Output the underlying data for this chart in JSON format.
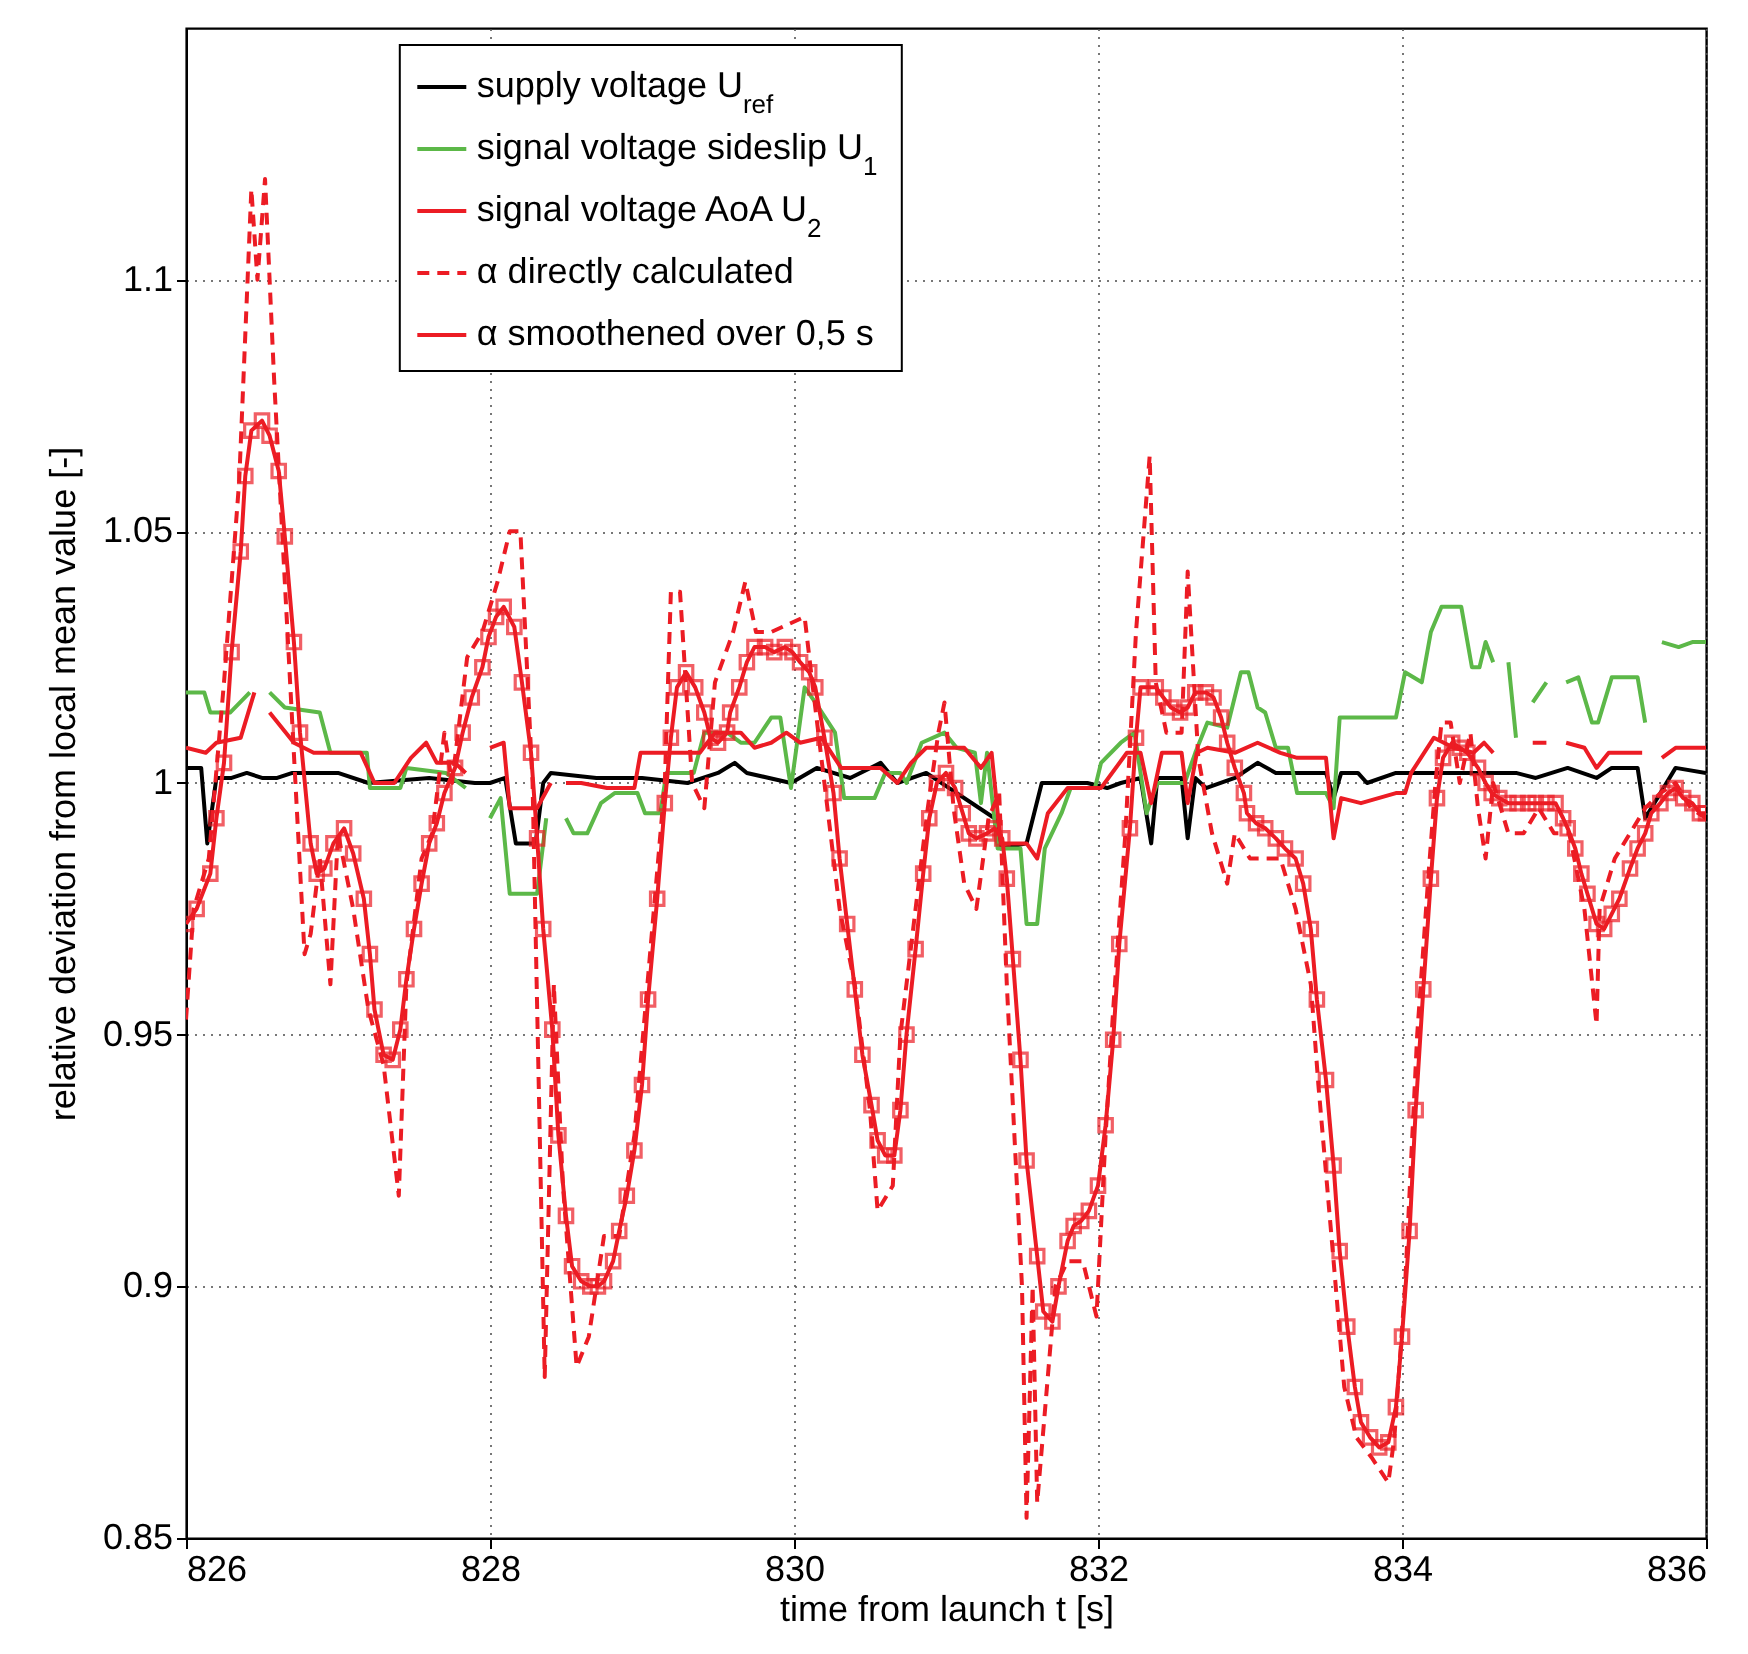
{
  "chart_data": {
    "type": "line",
    "xlabel": "time from launch t [s]",
    "ylabel": "relative deviation from local mean value [-]",
    "xlim": [
      826,
      836
    ],
    "xticks": [
      826,
      828,
      830,
      832,
      834,
      836
    ],
    "ylim": [
      0.85,
      1.15
    ],
    "yticks": [
      0.85,
      0.9,
      0.95,
      1,
      1.05,
      1.1
    ],
    "grid": true,
    "legend": "top",
    "series": [
      {
        "name": "supply voltage U$_{ref}$",
        "color": "#000000",
        "line_style": "solid",
        "marker": "none",
        "x": [
          826.0,
          826.1,
          826.14,
          826.2,
          826.3,
          826.4,
          826.5,
          826.6,
          826.7,
          827.0,
          827.2,
          827.6,
          827.9,
          828.0,
          828.1,
          828.17,
          828.3,
          828.35,
          828.4,
          828.7,
          829.0,
          829.3,
          829.5,
          829.61,
          829.69,
          829.98,
          830.15,
          830.37,
          830.57,
          830.68,
          830.87,
          831.32,
          831.36,
          831.53,
          831.63,
          831.76,
          831.93,
          832.06,
          832.15,
          832.28,
          832.35,
          832.39,
          832.55,
          832.59,
          832.64,
          832.71,
          832.9,
          833.05,
          833.17,
          833.5,
          833.55,
          833.6,
          833.71,
          833.77,
          833.96,
          834.52,
          834.75,
          834.88,
          835.09,
          835.28,
          835.38,
          835.55,
          835.6,
          835.8,
          836.0
        ],
        "values": [
          1.003,
          1.003,
          0.988,
          1.001,
          1.001,
          1.002,
          1.001,
          1.001,
          1.002,
          1.002,
          1.0,
          1.001,
          1.0,
          1.0,
          1.001,
          0.988,
          0.988,
          1.0,
          1.002,
          1.001,
          1.001,
          1.0,
          1.002,
          1.004,
          1.002,
          1.0,
          1.003,
          1.001,
          1.004,
          1.0,
          1.002,
          0.993,
          0.987,
          0.988,
          1.0,
          1.0,
          1.0,
          0.999,
          1.0,
          1.001,
          0.988,
          1.001,
          1.001,
          0.989,
          1.001,
          0.999,
          1.001,
          1.004,
          1.002,
          1.002,
          0.997,
          1.002,
          1.002,
          1.0,
          1.002,
          1.002,
          1.002,
          1.001,
          1.003,
          1.001,
          1.003,
          1.003,
          0.993,
          1.003,
          1.002
        ]
      },
      {
        "name": "signal voltage sideslip U$_{1}$",
        "color": "#5cb848",
        "line_style": "solid",
        "marker": "none",
        "x": [
          826.0,
          826.12,
          826.16,
          826.29,
          826.42,
          826.48,
          826.55,
          826.65,
          826.88,
          826.95,
          827.19,
          827.21,
          827.41,
          827.45,
          827.71,
          827.84,
          827.92,
          828.0,
          828.07,
          828.13,
          828.31,
          828.37,
          828.44,
          828.5,
          828.55,
          828.64,
          828.73,
          828.82,
          828.97,
          829.02,
          829.12,
          829.16,
          829.34,
          829.41,
          829.56,
          829.65,
          829.74,
          829.85,
          829.91,
          829.98,
          830.07,
          830.14,
          830.27,
          830.33,
          830.53,
          830.6,
          830.7,
          830.74,
          830.84,
          830.99,
          831.07,
          831.19,
          831.23,
          831.27,
          831.34,
          831.49,
          831.53,
          831.6,
          831.65,
          831.76,
          831.82,
          831.98,
          832.02,
          832.15,
          832.24,
          832.32,
          832.39,
          832.57,
          832.64,
          832.72,
          832.85,
          832.94,
          832.99,
          833.05,
          833.1,
          833.17,
          833.25,
          833.31,
          833.5,
          833.55,
          833.59,
          833.96,
          834.02,
          834.13,
          834.19,
          834.26,
          834.39,
          834.46,
          834.51,
          834.55,
          834.6,
          834.65,
          834.7,
          834.75,
          834.8,
          834.86,
          834.95,
          835.0,
          835.08,
          835.16,
          835.25,
          835.29,
          835.38,
          835.55,
          835.6,
          835.65,
          835.71,
          835.82,
          835.91,
          836.0
        ],
        "values": [
          1.018,
          1.018,
          1.014,
          1.014,
          1.018,
          null,
          1.018,
          1.015,
          1.014,
          1.006,
          1.006,
          0.999,
          0.999,
          1.003,
          1.002,
          0.999,
          null,
          0.993,
          0.997,
          0.978,
          0.978,
          0.993,
          null,
          0.993,
          0.99,
          0.99,
          0.996,
          0.998,
          0.998,
          0.994,
          0.994,
          1.002,
          1.002,
          1.01,
          1.01,
          1.008,
          1.008,
          1.013,
          1.013,
          0.999,
          1.019,
          1.016,
          1.01,
          0.997,
          0.997,
          1.002,
          1.002,
          1.0,
          1.008,
          1.01,
          1.007,
          1.006,
          0.996,
          1.006,
          0.987,
          0.987,
          0.972,
          0.972,
          0.987,
          0.994,
          0.999,
          0.999,
          1.004,
          1.008,
          1.01,
          0.994,
          1.0,
          1.0,
          1.006,
          1.012,
          1.011,
          1.022,
          1.022,
          1.015,
          1.014,
          1.007,
          1.007,
          0.998,
          0.998,
          0.995,
          1.013,
          1.013,
          1.022,
          1.02,
          1.03,
          1.035,
          1.035,
          1.023,
          1.023,
          1.028,
          1.024,
          null,
          1.024,
          1.009,
          null,
          1.016,
          1.02,
          null,
          1.02,
          1.021,
          1.012,
          1.012,
          1.021,
          1.021,
          1.012,
          null,
          1.028,
          1.027,
          1.028,
          1.028
        ]
      },
      {
        "name": "signal voltage AoA U$_{2}$",
        "color": "#ec1c24",
        "line_style": "solid",
        "marker": "none",
        "x": [
          826.0,
          826.13,
          826.2,
          826.36,
          826.45,
          826.5,
          826.55,
          826.71,
          826.84,
          827.15,
          827.24,
          827.37,
          827.48,
          827.58,
          827.65,
          827.77,
          827.84,
          827.92,
          828.0,
          828.09,
          828.13,
          828.31,
          828.4,
          828.45,
          828.5,
          828.6,
          828.77,
          828.95,
          828.99,
          829.16,
          829.38,
          829.48,
          829.65,
          829.74,
          829.85,
          829.95,
          830.04,
          830.18,
          830.31,
          830.57,
          830.68,
          830.77,
          830.87,
          831.12,
          831.23,
          831.3,
          831.36,
          831.53,
          831.6,
          831.67,
          831.8,
          832.02,
          832.19,
          832.28,
          832.35,
          832.42,
          832.55,
          832.59,
          832.65,
          832.72,
          832.9,
          833.05,
          833.2,
          833.31,
          833.5,
          833.55,
          833.6,
          833.73,
          833.96,
          834.02,
          834.06,
          834.21,
          834.34,
          834.47,
          834.54,
          834.6,
          834.7,
          834.86,
          834.95,
          835.0,
          835.08,
          835.2,
          835.28,
          835.36,
          835.58,
          835.65,
          835.71,
          835.8,
          836.0
        ],
        "values": [
          1.007,
          1.006,
          1.008,
          1.009,
          1.018,
          null,
          1.014,
          1.008,
          1.006,
          1.006,
          1.0,
          1.0,
          1.005,
          1.008,
          1.004,
          1.004,
          1.002,
          null,
          1.007,
          1.008,
          0.995,
          0.995,
          1.0,
          null,
          1.0,
          1.0,
          0.999,
          0.999,
          1.006,
          1.006,
          1.006,
          1.01,
          1.01,
          1.007,
          1.008,
          1.01,
          1.008,
          1.009,
          1.003,
          1.003,
          1.0,
          1.004,
          1.007,
          1.007,
          1.003,
          1.006,
          0.988,
          0.988,
          0.985,
          0.994,
          0.999,
          0.999,
          1.006,
          1.006,
          0.996,
          1.006,
          1.006,
          0.996,
          1.006,
          1.007,
          1.006,
          1.008,
          1.006,
          1.005,
          1.005,
          0.989,
          0.997,
          0.996,
          0.998,
          0.998,
          1.002,
          1.009,
          1.007,
          1.006,
          1.008,
          1.006,
          null,
          1.008,
          1.008,
          null,
          1.008,
          1.007,
          1.003,
          1.006,
          1.006,
          null,
          1.005,
          1.007,
          1.007
        ]
      },
      {
        "name": "α directly calculated",
        "color": "#ec1c24",
        "line_style": "dashed",
        "marker": "none",
        "x": [
          826.0,
          826.05,
          826.15,
          826.25,
          826.35,
          826.43,
          826.47,
          826.52,
          826.58,
          826.65,
          826.72,
          826.78,
          826.82,
          826.88,
          826.95,
          827.0,
          827.1,
          827.2,
          827.3,
          827.4,
          827.45,
          827.55,
          827.62,
          827.7,
          827.75,
          827.85,
          827.95,
          828.05,
          828.13,
          828.2,
          828.28,
          828.36,
          828.42,
          828.48,
          828.57,
          828.65,
          828.75,
          828.85,
          828.95,
          829.05,
          829.15,
          829.19,
          829.25,
          829.33,
          829.41,
          829.48,
          829.6,
          829.68,
          829.75,
          829.85,
          830.07,
          830.12,
          830.2,
          830.3,
          830.4,
          830.5,
          830.55,
          830.65,
          830.7,
          830.8,
          830.88,
          830.95,
          830.99,
          831.05,
          831.12,
          831.2,
          831.28,
          831.35,
          831.4,
          831.5,
          831.53,
          831.57,
          831.6,
          831.72,
          831.8,
          831.9,
          831.99,
          832.05,
          832.1,
          832.18,
          832.25,
          832.34,
          832.38,
          832.45,
          832.55,
          832.59,
          832.66,
          832.75,
          832.85,
          832.9,
          833.0,
          833.1,
          833.2,
          833.3,
          833.4,
          833.45,
          833.55,
          833.62,
          833.7,
          833.8,
          833.91,
          833.95,
          834.02,
          834.1,
          834.17,
          834.22,
          834.26,
          834.32,
          834.38,
          834.45,
          834.5,
          834.55,
          834.6,
          834.7,
          834.8,
          834.9,
          835.0,
          835.1,
          835.2,
          835.28,
          835.3,
          835.4,
          835.5,
          835.6,
          835.7,
          835.8,
          835.9,
          836.0
        ],
        "values": [
          0.953,
          0.975,
          0.985,
          1.02,
          1.06,
          1.118,
          1.1,
          1.12,
          1.08,
          1.04,
          1.0,
          0.966,
          0.97,
          0.985,
          0.96,
          0.99,
          0.975,
          0.955,
          0.944,
          0.918,
          0.96,
          0.985,
          0.99,
          1.01,
          1.0,
          1.025,
          1.03,
          1.04,
          1.05,
          1.05,
          1.0,
          0.882,
          0.96,
          0.92,
          0.884,
          0.89,
          0.91,
          0.91,
          0.93,
          0.965,
          1.0,
          1.038,
          1.038,
          1.0,
          0.995,
          1.02,
          1.03,
          1.04,
          1.03,
          1.03,
          1.033,
          1.02,
          1.0,
          0.975,
          0.96,
          0.935,
          0.915,
          0.92,
          0.95,
          0.975,
          0.995,
          1.01,
          1.016,
          0.995,
          0.98,
          0.975,
          0.993,
          0.998,
          0.96,
          0.9,
          0.854,
          0.9,
          0.857,
          0.9,
          0.905,
          0.905,
          0.894,
          0.93,
          0.955,
          0.99,
          1.03,
          1.065,
          1.02,
          1.01,
          1.01,
          1.042,
          1.005,
          0.99,
          0.98,
          0.99,
          0.985,
          0.985,
          0.985,
          0.975,
          0.96,
          0.94,
          0.905,
          0.88,
          0.87,
          0.866,
          0.861,
          0.87,
          0.9,
          0.95,
          0.98,
          1.0,
          1.012,
          1.012,
          1.0,
          1.01,
          0.995,
          0.985,
          1.0,
          0.99,
          0.99,
          0.995,
          0.99,
          0.99,
          0.975,
          0.952,
          0.975,
          0.985,
          0.99,
          0.995,
          0.998,
          1.0,
          0.995,
          0.993
        ]
      },
      {
        "name": "α smoothened over 0,5 s",
        "color": "#ec1c24",
        "line_style": "solid",
        "marker": "square",
        "x": [
          826.0,
          826.07,
          826.16,
          826.2,
          826.25,
          826.3,
          826.36,
          826.39,
          826.43,
          826.5,
          826.55,
          826.61,
          826.65,
          826.71,
          826.75,
          826.82,
          826.86,
          826.91,
          826.97,
          827.04,
          827.1,
          827.17,
          827.21,
          827.24,
          827.3,
          827.36,
          827.41,
          827.45,
          827.5,
          827.55,
          827.6,
          827.65,
          827.7,
          827.77,
          827.82,
          827.88,
          827.95,
          827.99,
          828.04,
          828.09,
          828.16,
          828.21,
          828.27,
          828.31,
          828.35,
          828.41,
          828.45,
          828.5,
          828.54,
          828.6,
          828.66,
          828.71,
          828.75,
          828.81,
          828.85,
          828.9,
          828.95,
          829.0,
          829.04,
          829.1,
          829.15,
          829.19,
          829.23,
          829.29,
          829.35,
          829.41,
          829.45,
          829.5,
          829.56,
          829.58,
          829.64,
          829.69,
          829.74,
          829.81,
          829.87,
          829.94,
          829.99,
          830.04,
          830.1,
          830.14,
          830.2,
          830.26,
          830.3,
          830.35,
          830.4,
          830.45,
          830.51,
          830.55,
          830.6,
          830.66,
          830.7,
          830.74,
          830.8,
          830.85,
          830.89,
          830.94,
          831.0,
          831.06,
          831.11,
          831.15,
          831.2,
          831.27,
          831.32,
          831.37,
          831.4,
          831.44,
          831.49,
          831.53,
          831.6,
          831.64,
          831.7,
          831.74,
          831.8,
          831.84,
          831.89,
          831.94,
          832.0,
          832.05,
          832.1,
          832.14,
          832.21,
          832.25,
          832.28,
          832.38,
          832.43,
          832.48,
          832.54,
          832.59,
          832.64,
          832.71,
          832.76,
          832.81,
          832.85,
          832.9,
          832.96,
          832.98,
          833.04,
          833.1,
          833.17,
          833.23,
          833.3,
          833.35,
          833.4,
          833.44,
          833.5,
          833.55,
          833.59,
          833.64,
          833.69,
          833.73,
          833.79,
          833.85,
          833.91,
          833.96,
          834.0,
          834.05,
          834.09,
          834.14,
          834.19,
          834.23,
          834.27,
          834.33,
          834.38,
          834.43,
          834.5,
          834.55,
          834.59,
          834.64,
          834.7,
          834.76,
          834.83,
          834.88,
          834.95,
          835.01,
          835.06,
          835.09,
          835.14,
          835.18,
          835.22,
          835.28,
          835.33,
          835.38,
          835.43,
          835.5,
          835.55,
          835.6,
          835.64,
          835.7,
          835.75,
          835.8,
          835.85,
          835.91,
          835.96,
          836.0
        ],
        "values": [
          0.972,
          0.975,
          0.982,
          0.993,
          1.004,
          1.026,
          1.046,
          1.061,
          1.07,
          1.072,
          1.069,
          1.062,
          1.049,
          1.028,
          1.01,
          0.988,
          0.982,
          0.983,
          0.988,
          0.991,
          0.986,
          0.977,
          0.966,
          0.955,
          0.946,
          0.945,
          0.951,
          0.961,
          0.971,
          0.98,
          0.988,
          0.992,
          0.998,
          1.003,
          1.01,
          1.017,
          1.023,
          1.029,
          1.033,
          1.035,
          1.031,
          1.02,
          1.006,
          0.989,
          0.971,
          0.951,
          0.93,
          0.914,
          0.904,
          0.901,
          0.9,
          0.9,
          0.901,
          0.905,
          0.911,
          0.918,
          0.927,
          0.94,
          0.957,
          0.977,
          0.996,
          1.009,
          1.019,
          1.022,
          1.019,
          1.014,
          1.009,
          1.008,
          1.01,
          1.014,
          1.019,
          1.024,
          1.027,
          1.027,
          1.026,
          1.027,
          1.026,
          1.024,
          1.022,
          1.019,
          1.009,
          0.998,
          0.985,
          0.972,
          0.959,
          0.946,
          0.936,
          0.929,
          0.926,
          0.926,
          0.935,
          0.95,
          0.967,
          0.982,
          0.993,
          1.0,
          1.002,
          0.999,
          0.994,
          0.99,
          0.989,
          0.99,
          0.991,
          0.989,
          0.981,
          0.965,
          0.945,
          0.925,
          0.906,
          0.895,
          0.893,
          0.9,
          0.909,
          0.912,
          0.913,
          0.915,
          0.92,
          0.932,
          0.949,
          0.968,
          0.991,
          1.009,
          1.019,
          1.019,
          1.017,
          1.015,
          1.014,
          1.015,
          1.018,
          1.018,
          1.017,
          1.013,
          1.008,
          1.003,
          0.998,
          0.994,
          0.992,
          0.991,
          0.989,
          0.987,
          0.985,
          0.98,
          0.971,
          0.957,
          0.941,
          0.924,
          0.907,
          0.892,
          0.88,
          0.873,
          0.87,
          0.868,
          0.869,
          0.876,
          0.89,
          0.911,
          0.935,
          0.959,
          0.981,
          0.997,
          1.005,
          1.008,
          1.007,
          1.006,
          1.003,
          1.0,
          0.998,
          0.997,
          0.996,
          0.996,
          0.996,
          0.996,
          0.996,
          0.996,
          0.993,
          0.991,
          0.987,
          0.982,
          0.978,
          0.972,
          0.971,
          0.974,
          0.977,
          0.983,
          0.987,
          0.99,
          0.994,
          0.996,
          0.998,
          0.999,
          0.997,
          0.996,
          0.994,
          0.994
        ]
      }
    ]
  }
}
